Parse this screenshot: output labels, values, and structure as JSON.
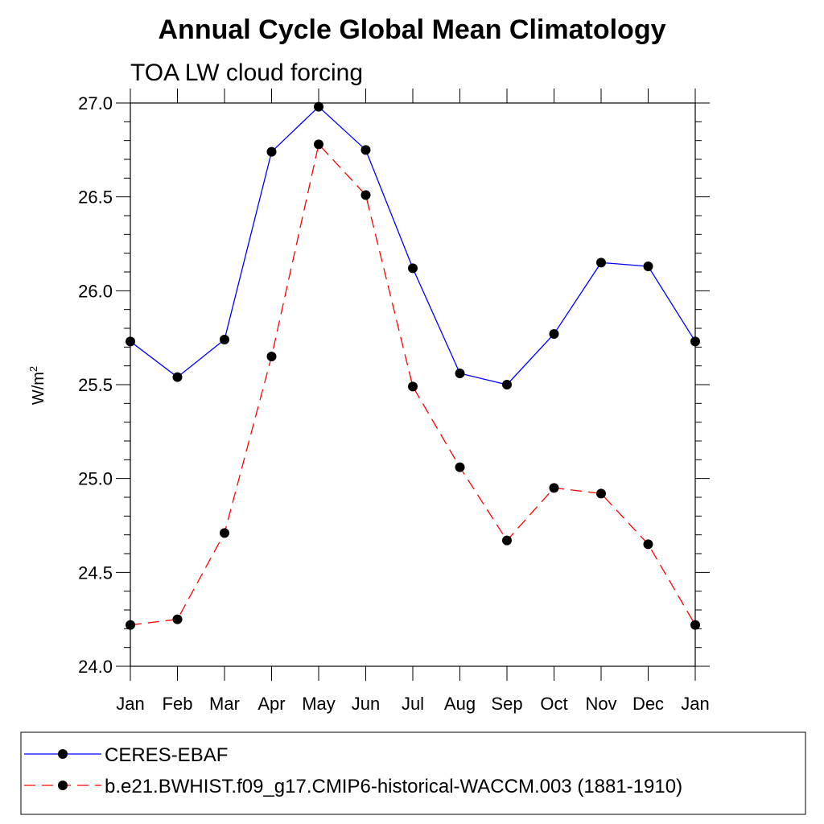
{
  "chart_data": {
    "type": "line",
    "title": "Annual Cycle Global Mean Climatology",
    "subtitle": "TOA LW cloud forcing",
    "ylabel_main": "W/m",
    "ylabel_sup": "2",
    "xlabel": "",
    "categories": [
      "Jan",
      "Feb",
      "Mar",
      "Apr",
      "May",
      "Jun",
      "Jul",
      "Aug",
      "Sep",
      "Oct",
      "Nov",
      "Dec",
      "Jan"
    ],
    "ylim": [
      24.0,
      27.0
    ],
    "yticks": [
      "24.0",
      "24.5",
      "25.0",
      "25.5",
      "26.0",
      "26.5",
      "27.0"
    ],
    "series": [
      {
        "name": "CERES-EBAF",
        "color": "#0000ff",
        "dash": "solid",
        "values": [
          25.73,
          25.54,
          25.74,
          26.74,
          26.98,
          26.75,
          26.12,
          25.56,
          25.5,
          25.77,
          26.15,
          26.13,
          25.73
        ]
      },
      {
        "name": "b.e21.BWHIST.f09_g17.CMIP6-historical-WACCM.003 (1881-1910)",
        "color": "#ff0000",
        "dash": "dashed",
        "values": [
          24.22,
          24.25,
          24.71,
          25.65,
          26.78,
          26.51,
          25.49,
          25.06,
          24.67,
          24.95,
          24.92,
          24.65,
          24.22
        ]
      }
    ],
    "grid": false,
    "legend_position": "bottom"
  }
}
